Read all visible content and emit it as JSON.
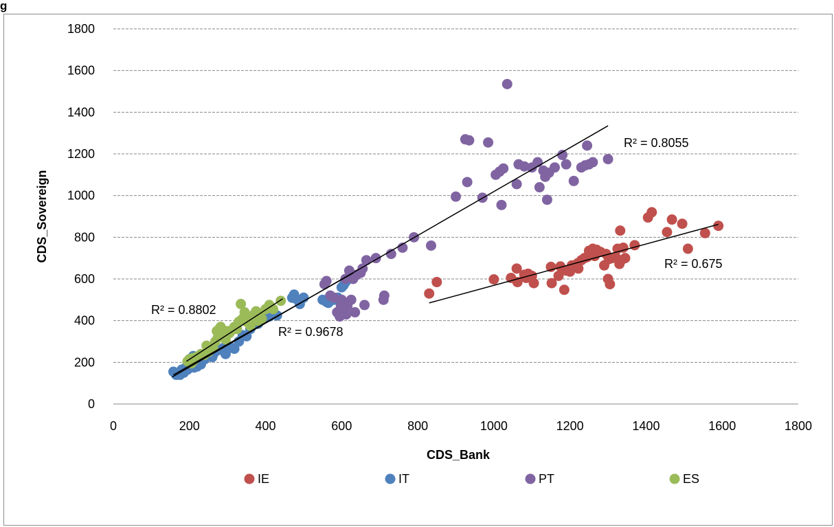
{
  "figure_title": "g",
  "chart_data": {
    "type": "scatter",
    "title": "",
    "xlabel": "CDS_Bank",
    "ylabel": "CDS_Sovereign",
    "xlim": [
      0,
      1800
    ],
    "ylim": [
      0,
      1800
    ],
    "xticks": [
      0,
      200,
      400,
      600,
      800,
      1000,
      1200,
      1400,
      1600,
      1800
    ],
    "yticks": [
      0,
      200,
      400,
      600,
      800,
      1000,
      1200,
      1400,
      1600,
      1800
    ],
    "grid": "horizontal dashed",
    "legend_position": "bottom",
    "series": [
      {
        "name": "IE",
        "color": "#c0504d",
        "points": [
          [
            830,
            530
          ],
          [
            850,
            585
          ],
          [
            1000,
            598
          ],
          [
            1045,
            605
          ],
          [
            1060,
            650
          ],
          [
            1062,
            585
          ],
          [
            1080,
            620
          ],
          [
            1085,
            605
          ],
          [
            1090,
            625
          ],
          [
            1100,
            615
          ],
          [
            1105,
            580
          ],
          [
            1150,
            658
          ],
          [
            1152,
            580
          ],
          [
            1170,
            615
          ],
          [
            1175,
            660
          ],
          [
            1185,
            548
          ],
          [
            1190,
            640
          ],
          [
            1200,
            635
          ],
          [
            1205,
            665
          ],
          [
            1220,
            675
          ],
          [
            1222,
            650
          ],
          [
            1230,
            690
          ],
          [
            1238,
            700
          ],
          [
            1245,
            705
          ],
          [
            1250,
            735
          ],
          [
            1255,
            715
          ],
          [
            1260,
            745
          ],
          [
            1265,
            710
          ],
          [
            1270,
            740
          ],
          [
            1280,
            730
          ],
          [
            1290,
            665
          ],
          [
            1295,
            720
          ],
          [
            1300,
            600
          ],
          [
            1302,
            695
          ],
          [
            1305,
            575
          ],
          [
            1310,
            700
          ],
          [
            1320,
            705
          ],
          [
            1325,
            745
          ],
          [
            1330,
            672
          ],
          [
            1332,
            832
          ],
          [
            1335,
            690
          ],
          [
            1340,
            750
          ],
          [
            1345,
            700
          ],
          [
            1370,
            762
          ],
          [
            1405,
            895
          ],
          [
            1415,
            920
          ],
          [
            1455,
            825
          ],
          [
            1468,
            885
          ],
          [
            1495,
            865
          ],
          [
            1510,
            745
          ],
          [
            1555,
            820
          ],
          [
            1590,
            855
          ]
        ],
        "trendline": {
          "x": [
            830,
            1590
          ],
          "y": [
            485,
            862
          ],
          "r2_label": "R² = 0.675"
        }
      },
      {
        "name": "IT",
        "color": "#4f81bd",
        "points": [
          [
            158,
            155
          ],
          [
            165,
            140
          ],
          [
            175,
            140
          ],
          [
            180,
            165
          ],
          [
            185,
            150
          ],
          [
            190,
            175
          ],
          [
            195,
            165
          ],
          [
            200,
            180
          ],
          [
            202,
            200
          ],
          [
            205,
            185
          ],
          [
            210,
            230
          ],
          [
            212,
            175
          ],
          [
            215,
            195
          ],
          [
            220,
            180
          ],
          [
            225,
            205
          ],
          [
            230,
            190
          ],
          [
            235,
            210
          ],
          [
            240,
            215
          ],
          [
            245,
            230
          ],
          [
            250,
            250
          ],
          [
            255,
            240
          ],
          [
            260,
            225
          ],
          [
            265,
            245
          ],
          [
            270,
            255
          ],
          [
            280,
            260
          ],
          [
            290,
            270
          ],
          [
            295,
            240
          ],
          [
            300,
            280
          ],
          [
            310,
            270
          ],
          [
            318,
            265
          ],
          [
            330,
            300
          ],
          [
            340,
            330
          ],
          [
            350,
            325
          ],
          [
            360,
            360
          ],
          [
            365,
            380
          ],
          [
            370,
            395
          ],
          [
            380,
            385
          ],
          [
            395,
            410
          ],
          [
            410,
            420
          ],
          [
            420,
            430
          ],
          [
            430,
            425
          ],
          [
            470,
            510
          ],
          [
            475,
            525
          ],
          [
            480,
            505
          ],
          [
            490,
            480
          ],
          [
            500,
            510
          ],
          [
            550,
            500
          ],
          [
            560,
            490
          ],
          [
            565,
            485
          ],
          [
            570,
            520
          ],
          [
            580,
            500
          ],
          [
            590,
            510
          ],
          [
            600,
            560
          ],
          [
            605,
            570
          ],
          [
            610,
            585
          ],
          [
            618,
            600
          ],
          [
            625,
            615
          ]
        ],
        "trendline": {
          "x": [
            158,
            630
          ],
          "y": [
            140,
            628
          ],
          "r2_label": "R² = 0.9678"
        }
      },
      {
        "name": "PT",
        "color": "#8064a2",
        "points": [
          [
            555,
            575
          ],
          [
            560,
            590
          ],
          [
            570,
            520
          ],
          [
            580,
            510
          ],
          [
            588,
            440
          ],
          [
            595,
            420
          ],
          [
            598,
            470
          ],
          [
            600,
            500
          ],
          [
            605,
            450
          ],
          [
            610,
            600
          ],
          [
            612,
            430
          ],
          [
            615,
            470
          ],
          [
            620,
            640
          ],
          [
            625,
            500
          ],
          [
            630,
            600
          ],
          [
            635,
            440
          ],
          [
            640,
            620
          ],
          [
            650,
            630
          ],
          [
            655,
            650
          ],
          [
            660,
            475
          ],
          [
            665,
            690
          ],
          [
            690,
            700
          ],
          [
            710,
            500
          ],
          [
            712,
            520
          ],
          [
            730,
            720
          ],
          [
            760,
            750
          ],
          [
            790,
            800
          ],
          [
            835,
            760
          ],
          [
            900,
            995
          ],
          [
            925,
            1270
          ],
          [
            930,
            1065
          ],
          [
            935,
            1265
          ],
          [
            970,
            990
          ],
          [
            985,
            1255
          ],
          [
            1005,
            1100
          ],
          [
            1015,
            1115
          ],
          [
            1020,
            955
          ],
          [
            1025,
            1130
          ],
          [
            1035,
            1535
          ],
          [
            1060,
            1055
          ],
          [
            1065,
            1150
          ],
          [
            1080,
            1140
          ],
          [
            1100,
            1135
          ],
          [
            1115,
            1160
          ],
          [
            1120,
            1040
          ],
          [
            1130,
            1120
          ],
          [
            1135,
            1090
          ],
          [
            1140,
            980
          ],
          [
            1145,
            1110
          ],
          [
            1160,
            1135
          ],
          [
            1180,
            1195
          ],
          [
            1190,
            1150
          ],
          [
            1210,
            1070
          ],
          [
            1230,
            1135
          ],
          [
            1240,
            1145
          ],
          [
            1245,
            1240
          ],
          [
            1250,
            1150
          ],
          [
            1260,
            1160
          ],
          [
            1300,
            1175
          ]
        ],
        "trendline": {
          "x": [
            155,
            1300
          ],
          "y": [
            130,
            1335
          ],
          "r2_label": "R² = 0.8055"
        }
      },
      {
        "name": "ES",
        "color": "#9bbb59",
        "points": [
          [
            195,
            205
          ],
          [
            200,
            215
          ],
          [
            205,
            195
          ],
          [
            208,
            220
          ],
          [
            212,
            210
          ],
          [
            218,
            225
          ],
          [
            225,
            230
          ],
          [
            230,
            240
          ],
          [
            238,
            235
          ],
          [
            245,
            280
          ],
          [
            250,
            250
          ],
          [
            255,
            265
          ],
          [
            262,
            270
          ],
          [
            268,
            300
          ],
          [
            272,
            350
          ],
          [
            275,
            320
          ],
          [
            278,
            360
          ],
          [
            282,
            370
          ],
          [
            285,
            340
          ],
          [
            290,
            330
          ],
          [
            295,
            310
          ],
          [
            300,
            350
          ],
          [
            305,
            340
          ],
          [
            312,
            355
          ],
          [
            318,
            370
          ],
          [
            325,
            360
          ],
          [
            330,
            395
          ],
          [
            335,
            480
          ],
          [
            340,
            410
          ],
          [
            345,
            440
          ],
          [
            350,
            395
          ],
          [
            355,
            400
          ],
          [
            360,
            375
          ],
          [
            365,
            410
          ],
          [
            370,
            430
          ],
          [
            375,
            445
          ],
          [
            380,
            400
          ],
          [
            385,
            420
          ],
          [
            390,
            410
          ],
          [
            400,
            455
          ],
          [
            410,
            475
          ],
          [
            420,
            455
          ],
          [
            440,
            495
          ]
        ],
        "trendline": {
          "x": [
            192,
            445
          ],
          "y": [
            205,
            505
          ],
          "r2_label": "R² = 0.8802"
        }
      }
    ]
  }
}
